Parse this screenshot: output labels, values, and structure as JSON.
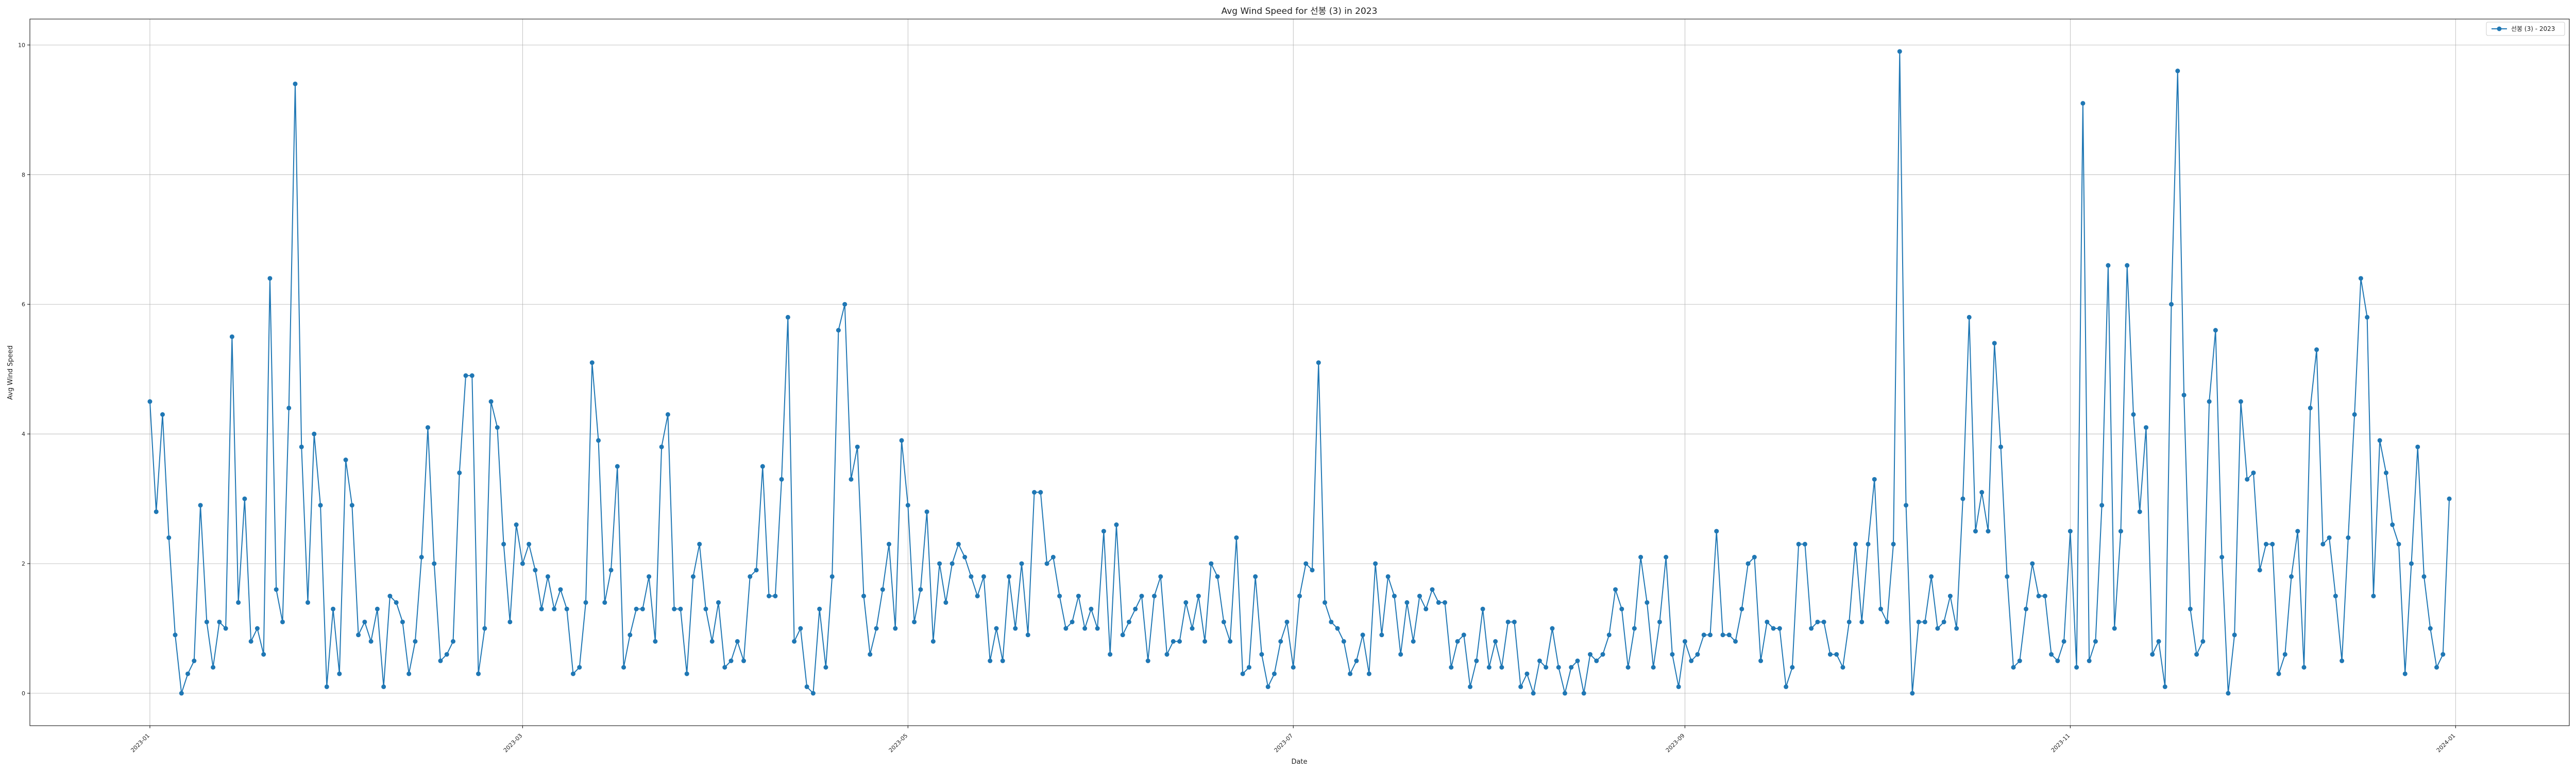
{
  "chart_data": {
    "type": "line",
    "title": "Avg Wind Speed for 선봉 (3) in 2023",
    "xlabel": "Date",
    "ylabel": "Avg Wind Speed",
    "grid": true,
    "legend_position": "top-right",
    "color": "#1f77b4",
    "x_range": [
      "2022-12-13",
      "2024-01-19"
    ],
    "y_range": [
      -0.5,
      10.4
    ],
    "x_ticks": [
      {
        "date": "2023-01-01",
        "label": "2023-01"
      },
      {
        "date": "2023-03-01",
        "label": "2023-03"
      },
      {
        "date": "2023-05-01",
        "label": "2023-05"
      },
      {
        "date": "2023-07-01",
        "label": "2023-07"
      },
      {
        "date": "2023-09-01",
        "label": "2023-09"
      },
      {
        "date": "2023-11-01",
        "label": "2023-11"
      },
      {
        "date": "2024-01-01",
        "label": "2024-01"
      }
    ],
    "y_ticks": [
      0,
      2,
      4,
      6,
      8,
      10
    ],
    "series": [
      {
        "name": "선봉 (3) - 2023",
        "start_date": "2023-01-01",
        "values": [
          4.5,
          2.8,
          4.3,
          2.4,
          0.9,
          0.0,
          0.3,
          0.5,
          2.9,
          1.1,
          0.4,
          1.1,
          1.0,
          5.5,
          1.4,
          3.0,
          0.8,
          1.0,
          0.6,
          6.4,
          1.6,
          1.1,
          4.4,
          9.4,
          3.8,
          1.4,
          4.0,
          2.9,
          0.1,
          1.3,
          0.3,
          3.6,
          2.9,
          0.9,
          1.1,
          0.8,
          1.3,
          0.1,
          1.5,
          1.4,
          1.1,
          0.3,
          0.8,
          2.1,
          4.1,
          2.0,
          0.5,
          0.6,
          0.8,
          3.4,
          4.9,
          4.9,
          0.3,
          1.0,
          4.5,
          4.1,
          2.3,
          1.1,
          2.6,
          2.0,
          2.3,
          1.9,
          1.3,
          1.8,
          1.3,
          1.6,
          1.3,
          0.3,
          0.4,
          1.4,
          5.1,
          3.9,
          1.4,
          1.9,
          3.5,
          0.4,
          0.9,
          1.3,
          1.3,
          1.8,
          0.8,
          3.8,
          4.3,
          1.3,
          1.3,
          0.3,
          1.8,
          2.3,
          1.3,
          0.8,
          1.4,
          0.4,
          0.5,
          0.8,
          0.5,
          1.8,
          1.9,
          3.5,
          1.5,
          1.5,
          3.3,
          5.8,
          0.8,
          1.0,
          0.1,
          0.0,
          1.3,
          0.4,
          1.8,
          5.6,
          6.0,
          3.3,
          3.8,
          1.5,
          0.6,
          1.0,
          1.6,
          2.3,
          1.0,
          3.9,
          2.9,
          1.1,
          1.6,
          2.8,
          0.8,
          2.0,
          1.4,
          2.0,
          2.3,
          2.1,
          1.8,
          1.5,
          1.8,
          0.5,
          1.0,
          0.5,
          1.8,
          1.0,
          2.0,
          0.9,
          3.1,
          3.1,
          2.0,
          2.1,
          1.5,
          1.0,
          1.1,
          1.5,
          1.0,
          1.3,
          1.0,
          2.5,
          0.6,
          2.6,
          0.9,
          1.1,
          1.3,
          1.5,
          0.5,
          1.5,
          1.8,
          0.6,
          0.8,
          0.8,
          1.4,
          1.0,
          1.5,
          0.8,
          2.0,
          1.8,
          1.1,
          0.8,
          2.4,
          0.3,
          0.4,
          1.8,
          0.6,
          0.1,
          0.3,
          0.8,
          1.1,
          0.4,
          1.5,
          2.0,
          1.9,
          5.1,
          1.4,
          1.1,
          1.0,
          0.8,
          0.3,
          0.5,
          0.9,
          0.3,
          2.0,
          0.9,
          1.8,
          1.5,
          0.6,
          1.4,
          0.8,
          1.5,
          1.3,
          1.6,
          1.4,
          1.4,
          0.4,
          0.8,
          0.9,
          0.1,
          0.5,
          1.3,
          0.4,
          0.8,
          0.4,
          1.1,
          1.1,
          0.1,
          0.3,
          0.0,
          0.5,
          0.4,
          1.0,
          0.4,
          0.0,
          0.4,
          0.5,
          0.0,
          0.6,
          0.5,
          0.6,
          0.9,
          1.6,
          1.3,
          0.4,
          1.0,
          2.1,
          1.4,
          0.4,
          1.1,
          2.1,
          0.6,
          0.1,
          0.8,
          0.5,
          0.6,
          0.9,
          0.9,
          2.5,
          0.9,
          0.9,
          0.8,
          1.3,
          2.0,
          2.1,
          0.5,
          1.1,
          1.0,
          1.0,
          0.1,
          0.4,
          2.3,
          2.3,
          1.0,
          1.1,
          1.1,
          0.6,
          0.6,
          0.4,
          1.1,
          2.3,
          1.1,
          2.3,
          3.3,
          1.3,
          1.1,
          2.3,
          9.9,
          2.9,
          0.0,
          1.1,
          1.1,
          1.8,
          1.0,
          1.1,
          1.5,
          1.0,
          3.0,
          5.8,
          2.5,
          3.1,
          2.5,
          5.4,
          3.8,
          1.8,
          0.4,
          0.5,
          1.3,
          2.0,
          1.5,
          1.5,
          0.6,
          0.5,
          0.8,
          2.5,
          0.4,
          9.1,
          0.5,
          0.8,
          2.9,
          6.6,
          1.0,
          2.5,
          6.6,
          4.3,
          2.8,
          4.1,
          0.6,
          0.8,
          0.1,
          6.0,
          9.6,
          4.6,
          1.3,
          0.6,
          0.8,
          4.5,
          5.6,
          2.1,
          0.0,
          0.9,
          4.5,
          3.3,
          3.4,
          1.9,
          2.3,
          2.3,
          0.3,
          0.6,
          1.8,
          2.5,
          0.4,
          4.4,
          5.3,
          2.3,
          2.4,
          1.5,
          0.5,
          2.4,
          4.3,
          6.4,
          5.8,
          1.5,
          3.9,
          3.4,
          2.6,
          2.3,
          0.3,
          2.0,
          3.8,
          1.8,
          1.0,
          0.4,
          0.6,
          3.0
        ]
      }
    ]
  }
}
